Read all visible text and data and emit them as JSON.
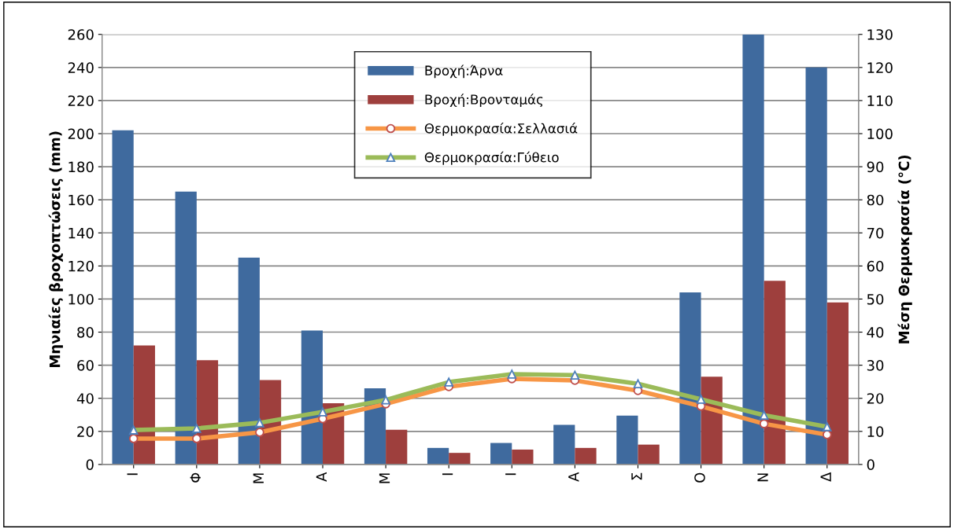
{
  "chart_data": {
    "type": "bar",
    "ylabel": "Μηνιαίες βροχοπτώσεις (mm)",
    "y2label": "Μέση Θερμοκρασία (°C)",
    "categories": [
      "Ι",
      "Φ",
      "Μ",
      "Α",
      "Μ",
      "Ι",
      "Ι",
      "Α",
      "Σ",
      "Ο",
      "Ν",
      "Δ"
    ],
    "series": [
      {
        "name": "Βροχή:Άρνα",
        "color": "#3f6a9e",
        "values": [
          202,
          165,
          125,
          81,
          46,
          10,
          13,
          24,
          29.5,
          104,
          260,
          240
        ]
      },
      {
        "name": "Βροχή:Βρονταμάς",
        "color": "#9e3f3d",
        "values": [
          72,
          63,
          51,
          37,
          21,
          7,
          9,
          10,
          12,
          53,
          111,
          98
        ]
      },
      {
        "name": "Θερμοκρασία:Σελλασιά",
        "type": "line",
        "axis": "y2",
        "color": "#f79646",
        "marker": "circle",
        "values": [
          7.8,
          7.8,
          9.7,
          13.8,
          18.3,
          23.5,
          25.9,
          25.4,
          22.3,
          17.6,
          12.3,
          9.0
        ]
      },
      {
        "name": "Θερμοκρασία:Γύθειο",
        "type": "line",
        "axis": "y2",
        "color": "#9bbb59",
        "marker": "triangle",
        "values": [
          10.4,
          10.9,
          12.6,
          15.9,
          19.5,
          24.9,
          27.3,
          27.0,
          24.4,
          19.7,
          14.9,
          11.4
        ]
      }
    ],
    "ylim": [
      0,
      260
    ],
    "yticks": [
      0,
      20,
      40,
      60,
      80,
      100,
      120,
      140,
      160,
      180,
      200,
      220,
      240,
      260
    ],
    "y2lim": [
      0,
      130
    ],
    "y2ticks": [
      0,
      10,
      20,
      30,
      40,
      50,
      60,
      70,
      80,
      90,
      100,
      110,
      120,
      130
    ],
    "grid": "y",
    "legend": "top"
  }
}
